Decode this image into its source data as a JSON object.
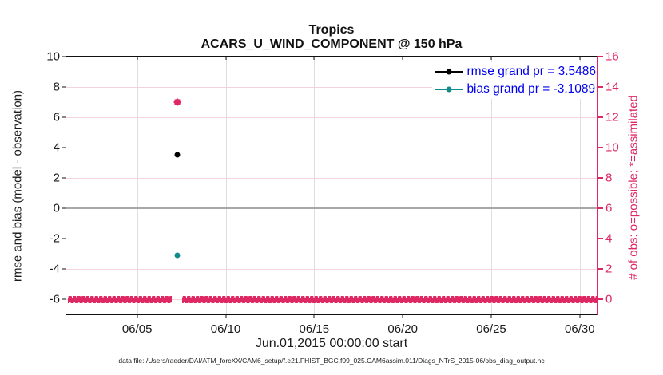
{
  "colors": {
    "crimson": "#dd2864",
    "teal": "#128b8b",
    "legend_text": "#0000ee",
    "grid_pink": "#f6d2de",
    "grid_gray": "#dedede",
    "zero_line": "#a8a8a8",
    "axis_black": "#111111"
  },
  "footer": "data file: /Users/raeder/DAI/ATM_forcXX/CAM6_setup/f.e21.FHIST_BGC.f09_025.CAM6assim.011/Diags_NTrS_2015-06/obs_diag_output.nc",
  "chart_data": {
    "type": "line",
    "title": "Tropics",
    "subtitle": "ACARS_U_WIND_COMPONENT @ 150 hPa",
    "xlabel": "Jun.01,2015 00:00:00 start",
    "ylabel_left": "rmse and bias (model - observation)",
    "ylabel_right": "# of obs: o=possible; *=assimilated",
    "grid": "on",
    "legend_position": "top-right-inside",
    "x_axis": {
      "start_day": 0,
      "end_day": 30,
      "tick_days": [
        4,
        9,
        14,
        19,
        24,
        29
      ],
      "tick_labels": [
        "06/05",
        "06/10",
        "06/15",
        "06/20",
        "06/25",
        "06/30"
      ]
    },
    "y_left": {
      "min": -7,
      "max": 10,
      "ticks": [
        10,
        8,
        6,
        4,
        2,
        0,
        -2,
        -4,
        -6
      ]
    },
    "y_right": {
      "min": -1,
      "max": 16,
      "ticks": [
        16,
        14,
        12,
        10,
        8,
        6,
        4,
        2,
        0
      ]
    },
    "zero_reference_line": 0,
    "series": [
      {
        "name": "rmse",
        "legend": "rmse grand pr = 3.5486",
        "color": "#000000",
        "axis": "left",
        "marker": "circle",
        "points": [
          {
            "day": 6.27,
            "value": 3.5486
          }
        ]
      },
      {
        "name": "bias",
        "legend": "bias grand pr = -3.1089",
        "color": "#128b8b",
        "axis": "left",
        "marker": "circle",
        "points": [
          {
            "day": 6.27,
            "value": -3.1089
          }
        ]
      },
      {
        "name": "obs-possible",
        "color": "#dd2864",
        "axis": "right",
        "marker": "circle-big",
        "points": [
          {
            "day": 6.27,
            "value": 13
          }
        ]
      },
      {
        "name": "obs-assimilated",
        "color": "#dd2864",
        "axis": "right",
        "marker": "star",
        "points": [
          {
            "day": 6.27,
            "value": 13
          }
        ]
      }
    ],
    "obs_zero_band": {
      "axis": "right",
      "value": 0,
      "marker": "star",
      "segments": [
        {
          "from_day": 0.1,
          "to_day": 5.95
        },
        {
          "from_day": 6.55,
          "to_day": 29.95
        }
      ]
    }
  }
}
